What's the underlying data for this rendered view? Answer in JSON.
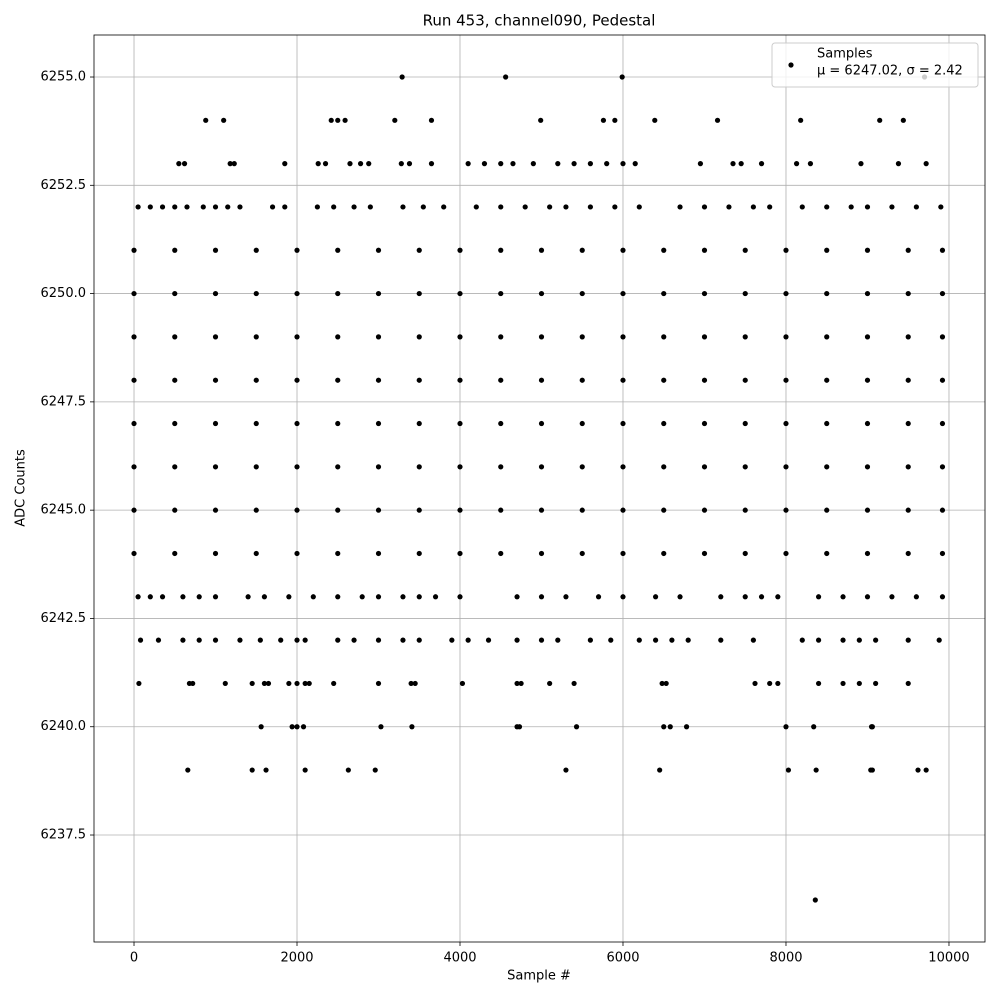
{
  "chart_data": {
    "type": "scatter",
    "title": "Run 453, channel090, Pedestal",
    "x_label": "Sample #",
    "y_label": "ADC Counts",
    "legend_note": "μ = 6247.02, σ = 2.42",
    "legend": "upper right",
    "grid": true,
    "xlim": [
      -491,
      10442
    ],
    "ylim": [
      6235.03,
      6255.97
    ],
    "xticks": [
      0,
      2000,
      4000,
      6000,
      8000,
      10000
    ],
    "yticks": [
      6237.5,
      {
        "value": 6240,
        "label": "6240.0"
      },
      6242.5,
      {
        "value": 6245,
        "label": "6245.0"
      },
      6247.5,
      {
        "value": 6250,
        "label": "6250.0"
      },
      6252.5,
      {
        "value": 6255,
        "label": "6255.0"
      }
    ],
    "series": [
      {
        "name": "Samples",
        "color": "#000000",
        "x": [
          0,
          500,
          1000,
          1500,
          2000,
          2500,
          3000,
          3500,
          4000,
          4500,
          5000,
          5500,
          6000,
          6500,
          7000,
          7500,
          8000,
          8500,
          9000,
          9500,
          9920,
          0,
          500,
          1000,
          1500,
          2000,
          2500,
          3000,
          3500,
          4000,
          4500,
          5000,
          5500,
          6000,
          6500,
          7000,
          7500,
          8000,
          8500,
          9000,
          9500,
          9920,
          0,
          500,
          1000,
          1500,
          2000,
          2500,
          3000,
          3500,
          4000,
          4500,
          5000,
          5500,
          6000,
          6500,
          7000,
          7500,
          8000,
          8500,
          9000,
          9500,
          9920,
          0,
          500,
          1000,
          1500,
          2000,
          2500,
          3000,
          3500,
          4000,
          4500,
          5000,
          5500,
          6000,
          6500,
          7000,
          7500,
          8000,
          8500,
          9000,
          9500,
          9920,
          0,
          500,
          1000,
          1500,
          2000,
          2500,
          3000,
          3500,
          4000,
          4500,
          5000,
          5500,
          6000,
          6500,
          7000,
          7500,
          8000,
          8500,
          9000,
          9500,
          9920,
          0,
          500,
          1000,
          1500,
          2000,
          2500,
          3000,
          3500,
          4000,
          4500,
          5000,
          5500,
          6000,
          6500,
          7000,
          7500,
          8000,
          8500,
          9000,
          9500,
          9920,
          0,
          500,
          1000,
          1500,
          2000,
          2500,
          3000,
          3500,
          4000,
          4500,
          5000,
          5500,
          6000,
          6500,
          7000,
          7500,
          8000,
          8500,
          9000,
          9500,
          9920,
          0,
          500,
          1000,
          1500,
          2000,
          2500,
          3000,
          3500,
          4000,
          4500,
          5000,
          5500,
          6000,
          6500,
          7000,
          7500,
          8000,
          8500,
          9000,
          9500,
          9920,
          3290,
          4560,
          5990,
          9700,
          880,
          1100,
          2420,
          2500,
          2590,
          3200,
          3650,
          4990,
          5760,
          5900,
          6390,
          7160,
          8180,
          9150,
          9440,
          550,
          620,
          1180,
          1230,
          1850,
          2260,
          2350,
          2650,
          2780,
          2880,
          3280,
          3380,
          3650,
          4100,
          4300,
          4500,
          4650,
          4900,
          5200,
          5400,
          5600,
          5800,
          6000,
          6150,
          6950,
          7350,
          7450,
          7700,
          8130,
          8300,
          8920,
          9380,
          9720,
          50,
          200,
          350,
          500,
          650,
          850,
          1000,
          1150,
          1300,
          1700,
          1850,
          2250,
          2450,
          2700,
          2900,
          3300,
          3550,
          3800,
          4200,
          4500,
          4800,
          5100,
          5300,
          5600,
          5900,
          6200,
          6700,
          7000,
          7300,
          7600,
          7800,
          8200,
          8500,
          8800,
          9000,
          9300,
          9600,
          9900,
          50,
          200,
          350,
          600,
          800,
          1000,
          1400,
          1600,
          1900,
          2200,
          2500,
          2800,
          3000,
          3300,
          3500,
          3700,
          4000,
          4700,
          5000,
          5300,
          5700,
          6000,
          6400,
          6700,
          7200,
          7500,
          7700,
          7900,
          8400,
          8700,
          9000,
          9300,
          9600,
          9920,
          80,
          300,
          600,
          800,
          1000,
          1300,
          1550,
          1800,
          2000,
          2100,
          2500,
          2700,
          3000,
          3300,
          3500,
          3900,
          4100,
          4350,
          4700,
          5000,
          5200,
          5600,
          5850,
          6200,
          6400,
          6600,
          6800,
          7200,
          7600,
          8200,
          8400,
          8700,
          8900,
          9100,
          9500,
          9880,
          60,
          680,
          720,
          1120,
          1450,
          1600,
          1650,
          1900,
          2000,
          2100,
          2150,
          2450,
          3000,
          3400,
          3450,
          4030,
          4700,
          4750,
          5100,
          5400,
          6480,
          6530,
          7620,
          7800,
          7900,
          8400,
          8700,
          8900,
          9100,
          9500,
          1560,
          1940,
          2000,
          2080,
          3030,
          3410,
          4700,
          4730,
          5430,
          6500,
          6580,
          6780,
          8000,
          8340,
          9050,
          9060,
          660,
          1450,
          1620,
          2100,
          2630,
          2960,
          5300,
          6450,
          8030,
          8370,
          9040,
          9060,
          9620,
          9720,
          8360
        ],
        "values": [
          6244,
          6244,
          6244,
          6244,
          6244,
          6244,
          6244,
          6244,
          6244,
          6244,
          6244,
          6244,
          6244,
          6244,
          6244,
          6244,
          6244,
          6244,
          6244,
          6244,
          6244,
          6245,
          6245,
          6245,
          6245,
          6245,
          6245,
          6245,
          6245,
          6245,
          6245,
          6245,
          6245,
          6245,
          6245,
          6245,
          6245,
          6245,
          6245,
          6245,
          6245,
          6245,
          6246,
          6246,
          6246,
          6246,
          6246,
          6246,
          6246,
          6246,
          6246,
          6246,
          6246,
          6246,
          6246,
          6246,
          6246,
          6246,
          6246,
          6246,
          6246,
          6246,
          6246,
          6247,
          6247,
          6247,
          6247,
          6247,
          6247,
          6247,
          6247,
          6247,
          6247,
          6247,
          6247,
          6247,
          6247,
          6247,
          6247,
          6247,
          6247,
          6247,
          6247,
          6247,
          6248,
          6248,
          6248,
          6248,
          6248,
          6248,
          6248,
          6248,
          6248,
          6248,
          6248,
          6248,
          6248,
          6248,
          6248,
          6248,
          6248,
          6248,
          6248,
          6248,
          6248,
          6249,
          6249,
          6249,
          6249,
          6249,
          6249,
          6249,
          6249,
          6249,
          6249,
          6249,
          6249,
          6249,
          6249,
          6249,
          6249,
          6249,
          6249,
          6249,
          6249,
          6249,
          6250,
          6250,
          6250,
          6250,
          6250,
          6250,
          6250,
          6250,
          6250,
          6250,
          6250,
          6250,
          6250,
          6250,
          6250,
          6250,
          6250,
          6250,
          6250,
          6250,
          6250,
          6251,
          6251,
          6251,
          6251,
          6251,
          6251,
          6251,
          6251,
          6251,
          6251,
          6251,
          6251,
          6251,
          6251,
          6251,
          6251,
          6251,
          6251,
          6251,
          6251,
          6251,
          6255,
          6255,
          6255,
          6255,
          6254,
          6254,
          6254,
          6254,
          6254,
          6254,
          6254,
          6254,
          6254,
          6254,
          6254,
          6254,
          6254,
          6254,
          6254,
          6253,
          6253,
          6253,
          6253,
          6253,
          6253,
          6253,
          6253,
          6253,
          6253,
          6253,
          6253,
          6253,
          6253,
          6253,
          6253,
          6253,
          6253,
          6253,
          6253,
          6253,
          6253,
          6253,
          6253,
          6253,
          6253,
          6253,
          6253,
          6253,
          6253,
          6253,
          6253,
          6253,
          6252,
          6252,
          6252,
          6252,
          6252,
          6252,
          6252,
          6252,
          6252,
          6252,
          6252,
          6252,
          6252,
          6252,
          6252,
          6252,
          6252,
          6252,
          6252,
          6252,
          6252,
          6252,
          6252,
          6252,
          6252,
          6252,
          6252,
          6252,
          6252,
          6252,
          6252,
          6252,
          6252,
          6252,
          6252,
          6252,
          6252,
          6252,
          6243,
          6243,
          6243,
          6243,
          6243,
          6243,
          6243,
          6243,
          6243,
          6243,
          6243,
          6243,
          6243,
          6243,
          6243,
          6243,
          6243,
          6243,
          6243,
          6243,
          6243,
          6243,
          6243,
          6243,
          6243,
          6243,
          6243,
          6243,
          6243,
          6243,
          6243,
          6243,
          6243,
          6243,
          6242,
          6242,
          6242,
          6242,
          6242,
          6242,
          6242,
          6242,
          6242,
          6242,
          6242,
          6242,
          6242,
          6242,
          6242,
          6242,
          6242,
          6242,
          6242,
          6242,
          6242,
          6242,
          6242,
          6242,
          6242,
          6242,
          6242,
          6242,
          6242,
          6242,
          6242,
          6242,
          6242,
          6242,
          6242,
          6242,
          6241,
          6241,
          6241,
          6241,
          6241,
          6241,
          6241,
          6241,
          6241,
          6241,
          6241,
          6241,
          6241,
          6241,
          6241,
          6241,
          6241,
          6241,
          6241,
          6241,
          6241,
          6241,
          6241,
          6241,
          6241,
          6241,
          6241,
          6241,
          6241,
          6241,
          6240,
          6240,
          6240,
          6240,
          6240,
          6240,
          6240,
          6240,
          6240,
          6240,
          6240,
          6240,
          6240,
          6240,
          6240,
          6240,
          6239,
          6239,
          6239,
          6239,
          6239,
          6239,
          6239,
          6239,
          6239,
          6239,
          6239,
          6239,
          6239,
          6239,
          6236
        ]
      }
    ]
  }
}
